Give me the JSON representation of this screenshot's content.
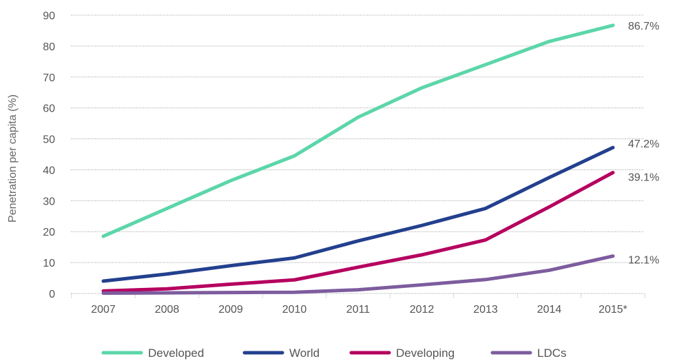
{
  "chart_data": {
    "type": "line",
    "title": "",
    "xlabel": "",
    "ylabel": "Penetration per capita (%)",
    "categories": [
      "2007",
      "2008",
      "2009",
      "2010",
      "2011",
      "2012",
      "2013",
      "2014",
      "2015*"
    ],
    "yticks": [
      "0",
      "10",
      "20",
      "30",
      "40",
      "50",
      "60",
      "70",
      "80",
      "90"
    ],
    "ylim": [
      0,
      90
    ],
    "grid": true,
    "legend_position": "bottom",
    "series": [
      {
        "name": "Developed",
        "color": "#5cd6a9",
        "values": [
          18.5,
          27.5,
          36.5,
          44.5,
          57,
          66.5,
          74,
          81.5,
          86.7
        ],
        "end_label": "86.7%"
      },
      {
        "name": "World",
        "color": "#23408e",
        "values": [
          4,
          6.3,
          9,
          11.5,
          17,
          22,
          27.5,
          37.5,
          47.2
        ],
        "end_label": "47.2%"
      },
      {
        "name": "Developing",
        "color": "#b5005f",
        "values": [
          0.8,
          1.5,
          3,
          4.4,
          8.5,
          12.5,
          17.3,
          28,
          39.1
        ],
        "end_label": "39.1%"
      },
      {
        "name": "LDCs",
        "color": "#7d5c9e",
        "values": [
          0.1,
          0.2,
          0.3,
          0.4,
          1.2,
          2.8,
          4.5,
          7.5,
          12.1
        ],
        "end_label": "12.1%"
      }
    ]
  }
}
